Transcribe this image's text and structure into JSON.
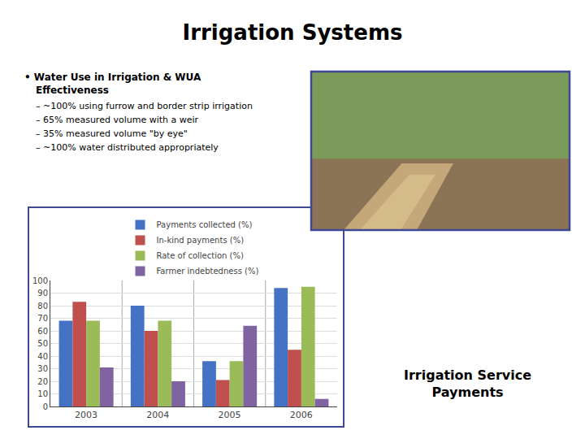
{
  "chart_data": {
    "type": "bar",
    "title": "Irrigation Systems",
    "categories": [
      "2003",
      "2004",
      "2005",
      "2006"
    ],
    "series": [
      {
        "name": "Payments collected (%)",
        "color": "#4472C4",
        "values": [
          68,
          80,
          36,
          94
        ]
      },
      {
        "name": "In-kind payments (%)",
        "color": "#C0504D",
        "values": [
          83,
          60,
          21,
          45
        ]
      },
      {
        "name": "Rate of collection (%)",
        "color": "#9BBB59",
        "values": [
          68,
          68,
          36,
          95
        ]
      },
      {
        "name": "Farmer indebtedness (%)",
        "color": "#8064A2",
        "values": [
          31,
          20,
          64,
          6
        ]
      }
    ],
    "ylim": [
      0,
      100
    ],
    "yticks": [
      0,
      10,
      20,
      30,
      40,
      50,
      60,
      70,
      80,
      90,
      100
    ],
    "grid": true,
    "annotations": [
      "• Water Use in Irrigation & WUA",
      "Effectiveness",
      "– ~100% using furrow and border strip irrigation",
      "– 65% measured volume with a weir",
      "– 35% measured volume \"by eye\"",
      "– ~100% water distributed appropriately",
      "Irrigation Service\nPayments"
    ]
  }
}
